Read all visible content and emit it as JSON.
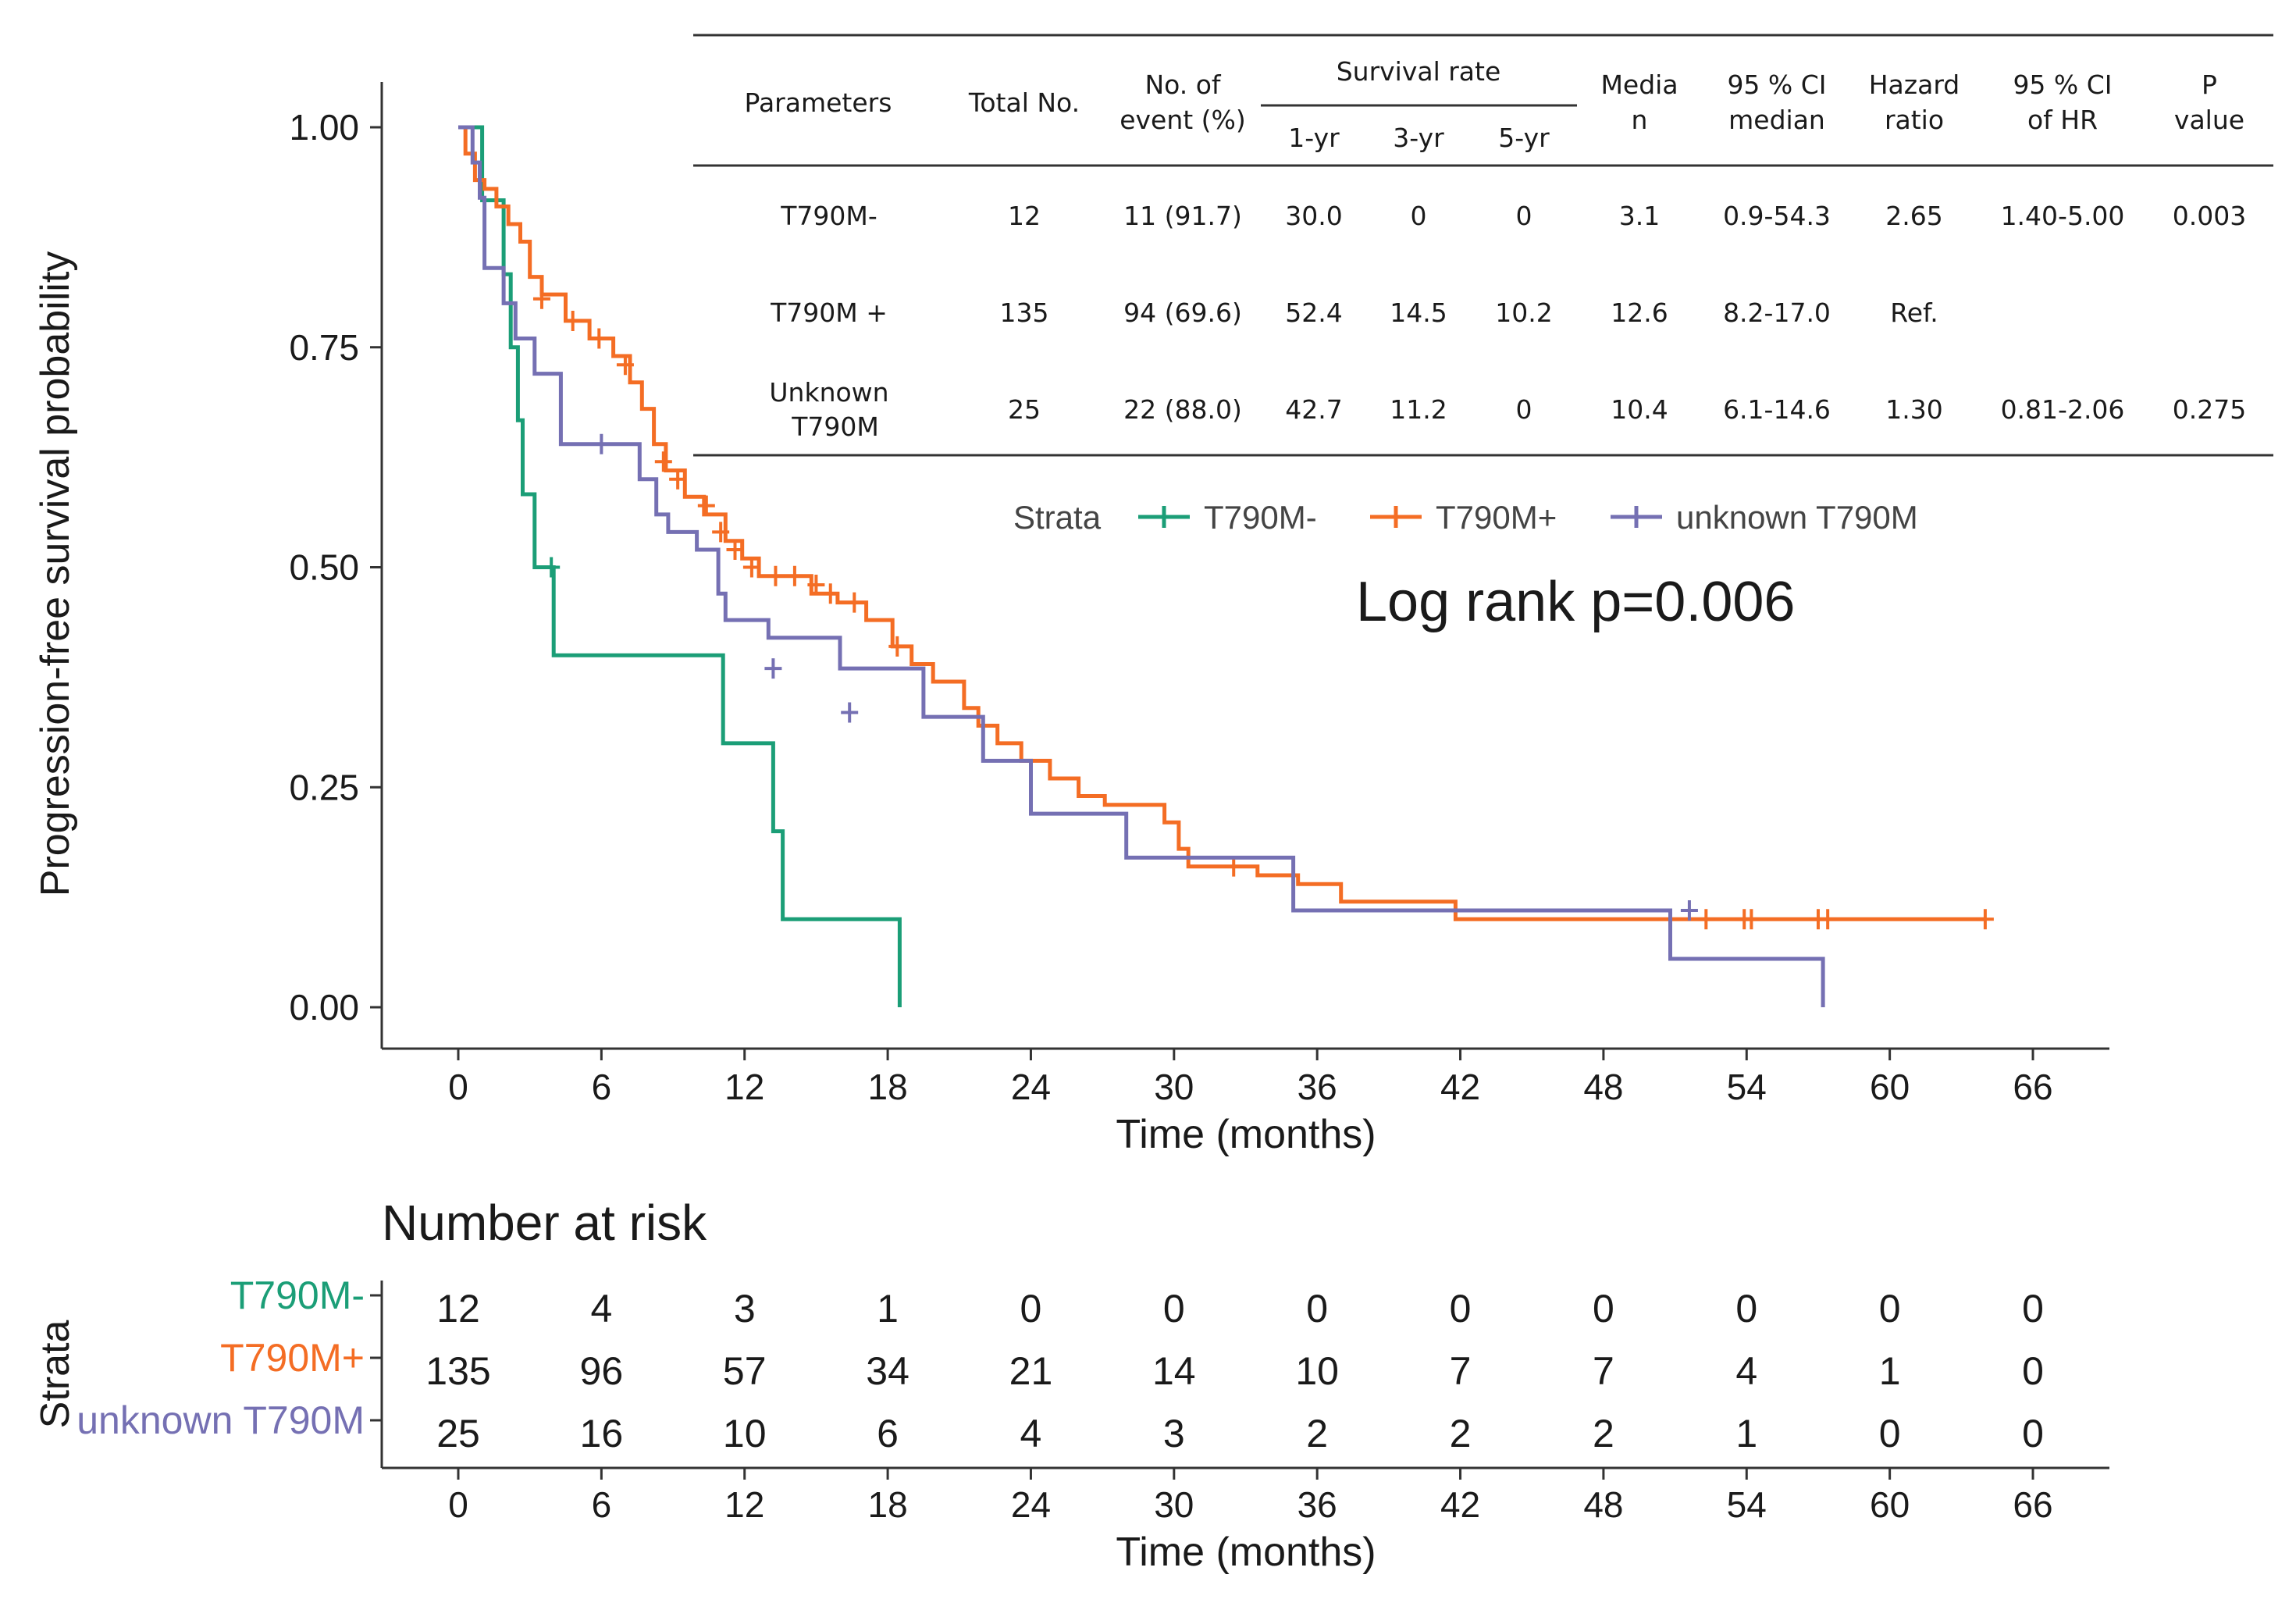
{
  "chart_data": {
    "type": "line",
    "subtype": "kaplan-meier",
    "ylabel": "Progression-free survival probability",
    "xlabel": "Time (months)",
    "xlim": [
      0,
      66
    ],
    "ylim": [
      0,
      1
    ],
    "xticks": [
      "0",
      "6",
      "12",
      "18",
      "24",
      "30",
      "36",
      "42",
      "48",
      "54",
      "60",
      "66"
    ],
    "yticks": [
      "0.00",
      "0.25",
      "0.50",
      "0.75",
      "1.00"
    ],
    "annotation": "Log rank p=0.006",
    "legend": {
      "title": "Strata",
      "position": "top-right",
      "entries": [
        "T790M-",
        "T790M+",
        "unknown T790M"
      ]
    },
    "series": [
      {
        "name": "T790M-",
        "color": "#1b9e77",
        "steps": [
          [
            0,
            1.0
          ],
          [
            0.7,
            1.0
          ],
          [
            1.0,
            0.917
          ],
          [
            1.9,
            0.833
          ],
          [
            2.2,
            0.75
          ],
          [
            2.5,
            0.667
          ],
          [
            2.7,
            0.583
          ],
          [
            3.2,
            0.5
          ],
          [
            4.0,
            0.4
          ],
          [
            11.1,
            0.3
          ],
          [
            13.2,
            0.2
          ],
          [
            13.6,
            0.1
          ],
          [
            18.5,
            0.0
          ]
        ],
        "censors": [
          [
            3.9,
            0.5
          ]
        ]
      },
      {
        "name": "T790M+",
        "color": "#f46d24",
        "steps": [
          [
            0,
            1.0
          ],
          [
            0.3,
            0.97
          ],
          [
            0.7,
            0.94
          ],
          [
            1.1,
            0.93
          ],
          [
            1.6,
            0.91
          ],
          [
            2.1,
            0.89
          ],
          [
            2.6,
            0.87
          ],
          [
            3.0,
            0.83
          ],
          [
            3.5,
            0.81
          ],
          [
            4.5,
            0.78
          ],
          [
            5.5,
            0.76
          ],
          [
            6.5,
            0.74
          ],
          [
            7.2,
            0.71
          ],
          [
            7.7,
            0.68
          ],
          [
            8.2,
            0.64
          ],
          [
            8.7,
            0.61
          ],
          [
            9.5,
            0.58
          ],
          [
            10.3,
            0.56
          ],
          [
            11.2,
            0.53
          ],
          [
            11.9,
            0.51
          ],
          [
            12.6,
            0.49
          ],
          [
            14.8,
            0.47
          ],
          [
            15.9,
            0.46
          ],
          [
            17.1,
            0.44
          ],
          [
            18.2,
            0.41
          ],
          [
            19.0,
            0.39
          ],
          [
            19.9,
            0.37
          ],
          [
            21.2,
            0.34
          ],
          [
            21.8,
            0.32
          ],
          [
            22.6,
            0.3
          ],
          [
            23.6,
            0.28
          ],
          [
            24.8,
            0.26
          ],
          [
            26.0,
            0.24
          ],
          [
            27.1,
            0.23
          ],
          [
            29.6,
            0.21
          ],
          [
            30.2,
            0.18
          ],
          [
            30.6,
            0.16
          ],
          [
            33.5,
            0.15
          ],
          [
            35.2,
            0.14
          ],
          [
            37.0,
            0.12
          ],
          [
            41.8,
            0.1
          ],
          [
            64.0,
            0.1
          ]
        ],
        "censors": [
          [
            3.5,
            0.805
          ],
          [
            4.8,
            0.78
          ],
          [
            5.9,
            0.76
          ],
          [
            7.0,
            0.73
          ],
          [
            8.6,
            0.62
          ],
          [
            9.2,
            0.6
          ],
          [
            10.4,
            0.57
          ],
          [
            11.0,
            0.54
          ],
          [
            11.6,
            0.52
          ],
          [
            12.3,
            0.5
          ],
          [
            13.3,
            0.49
          ],
          [
            14.1,
            0.49
          ],
          [
            15.0,
            0.48
          ],
          [
            15.6,
            0.47
          ],
          [
            16.6,
            0.46
          ],
          [
            18.4,
            0.41
          ],
          [
            32.5,
            0.16
          ],
          [
            52.3,
            0.1
          ],
          [
            53.9,
            0.1
          ],
          [
            54.2,
            0.1
          ],
          [
            57.0,
            0.1
          ],
          [
            57.4,
            0.1
          ],
          [
            64.0,
            0.1
          ]
        ]
      },
      {
        "name": "unknown T790M",
        "color": "#7570b3",
        "steps": [
          [
            0,
            1.0
          ],
          [
            0.6,
            0.96
          ],
          [
            0.9,
            0.92
          ],
          [
            1.1,
            0.84
          ],
          [
            1.9,
            0.8
          ],
          [
            2.4,
            0.76
          ],
          [
            3.2,
            0.72
          ],
          [
            4.3,
            0.64
          ],
          [
            7.6,
            0.6
          ],
          [
            8.3,
            0.56
          ],
          [
            8.8,
            0.54
          ],
          [
            10.0,
            0.52
          ],
          [
            10.9,
            0.47
          ],
          [
            11.2,
            0.44
          ],
          [
            13.0,
            0.42
          ],
          [
            16.0,
            0.385
          ],
          [
            19.5,
            0.33
          ],
          [
            22.0,
            0.28
          ],
          [
            24.0,
            0.22
          ],
          [
            28.0,
            0.17
          ],
          [
            35.0,
            0.11
          ],
          [
            50.8,
            0.055
          ],
          [
            57.2,
            0.0
          ]
        ],
        "censors": [
          [
            6.0,
            0.64
          ],
          [
            13.2,
            0.385
          ],
          [
            16.4,
            0.335
          ],
          [
            51.6,
            0.11
          ]
        ]
      }
    ]
  },
  "table": {
    "headers": {
      "parameters": "Parameters",
      "total_no": "Total No.",
      "no_of": "No. of",
      "event_pct": "event (%)",
      "survival_rate": "Survival rate",
      "yr1": "1-yr",
      "yr3": "3-yr",
      "yr5": "5-yr",
      "media": "Media",
      "n": "n",
      "ci95": "95 % CI",
      "median": "median",
      "hazard": "Hazard",
      "ratio": "ratio",
      "ci95_2": "95 % CI",
      "of_hr": "of HR",
      "p": "P",
      "value": "value"
    },
    "rows": [
      {
        "label": [
          "T790M-"
        ],
        "total": "12",
        "events": "11 (91.7)",
        "yr1": "30.0",
        "yr3": "0",
        "yr5": "0",
        "median": "3.1",
        "ci": "0.9-54.3",
        "hr": "2.65",
        "hr_ci": "1.40-5.00",
        "p": "0.003"
      },
      {
        "label": [
          "T790M +"
        ],
        "total": "135",
        "events": "94 (69.6)",
        "yr1": "52.4",
        "yr3": "14.5",
        "yr5": "10.2",
        "median": "12.6",
        "ci": "8.2-17.0",
        "hr": "Ref.",
        "hr_ci": "",
        "p": ""
      },
      {
        "label": [
          "Unknown",
          "T790M"
        ],
        "total": "25",
        "events": "22 (88.0)",
        "yr1": "42.7",
        "yr3": "11.2",
        "yr5": "0",
        "median": "10.4",
        "ci": "6.1-14.6",
        "hr": "1.30",
        "hr_ci": "0.81-2.06",
        "p": "0.275"
      }
    ]
  },
  "risk_table": {
    "title": "Number at risk",
    "ylabel": "Strata",
    "xlabel": "Time (months)",
    "times": [
      "0",
      "6",
      "12",
      "18",
      "24",
      "30",
      "36",
      "42",
      "48",
      "54",
      "60",
      "66"
    ],
    "rows": [
      {
        "name": "T790M-",
        "color": "#1b9e77",
        "values": [
          "12",
          "4",
          "3",
          "1",
          "0",
          "0",
          "0",
          "0",
          "0",
          "0",
          "0",
          "0"
        ]
      },
      {
        "name": "T790M+",
        "color": "#f46d24",
        "values": [
          "135",
          "96",
          "57",
          "34",
          "21",
          "14",
          "10",
          "7",
          "7",
          "4",
          "1",
          "0"
        ]
      },
      {
        "name": "unknown T790M",
        "color": "#7570b3",
        "values": [
          "25",
          "16",
          "10",
          "6",
          "4",
          "3",
          "2",
          "2",
          "2",
          "1",
          "0",
          "0"
        ]
      }
    ]
  }
}
